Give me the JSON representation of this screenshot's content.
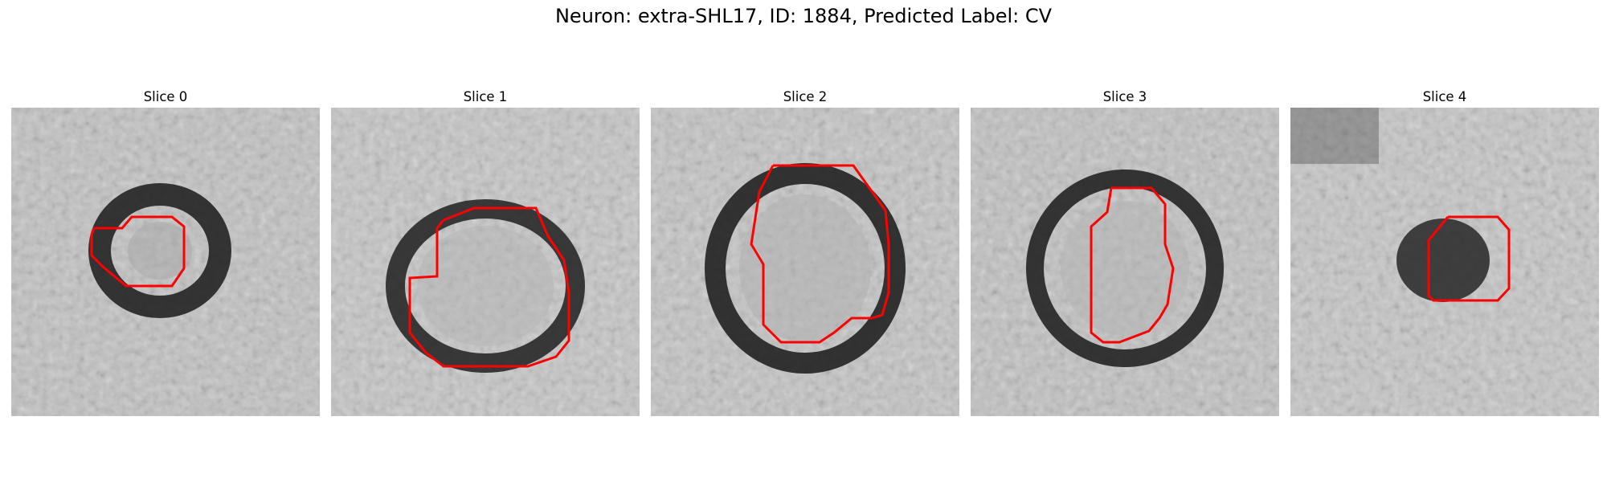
{
  "figure": {
    "title": "Neuron: extra-SHL17, ID: 1884, Predicted Label: CV"
  },
  "panels": [
    {
      "title": "Slice 0"
    },
    {
      "title": "Slice 1"
    },
    {
      "title": "Slice 2"
    },
    {
      "title": "Slice 3"
    },
    {
      "title": "Slice 4"
    }
  ],
  "colors": {
    "contour": "#ff0000",
    "background": "#ffffff"
  }
}
